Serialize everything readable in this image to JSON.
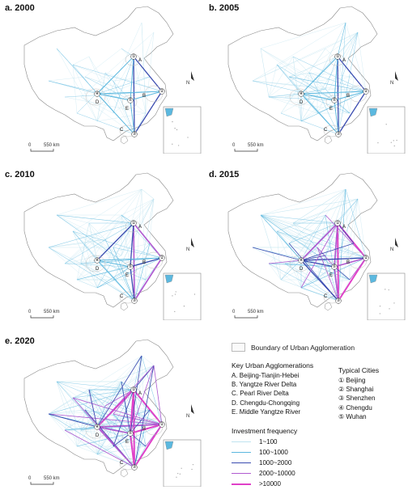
{
  "panels": [
    {
      "id": "2000",
      "label": "a. 2000",
      "level": 0
    },
    {
      "id": "2005",
      "label": "b. 2005",
      "level": 1
    },
    {
      "id": "2010",
      "label": "c. 2010",
      "level": 2
    },
    {
      "id": "2015",
      "label": "d. 2015",
      "level": 3
    },
    {
      "id": "2020",
      "label": "e. 2020",
      "level": 4
    }
  ],
  "scale_bar": {
    "zero": "0",
    "distance": "550 km"
  },
  "north_arrow": "N",
  "boundary_legend": "Boundary of Urban Agglomeration",
  "agglomerations": {
    "title": "Key Urban Agglomerations",
    "items": [
      "A. Beijing-Tianjin-Hebei",
      "B. Yangtze River Delta",
      "C. Pearl River Delta",
      "D. Chengdu-Chongqing",
      "E. Middle Yangtze River"
    ],
    "letters": [
      "A",
      "B",
      "C",
      "D",
      "E"
    ]
  },
  "cities": {
    "title": "Typical Cities",
    "items": [
      {
        "num": "①",
        "name": "Beijing"
      },
      {
        "num": "②",
        "name": "Shanghai"
      },
      {
        "num": "③",
        "name": "Shenzhen"
      },
      {
        "num": "④",
        "name": "Chengdu"
      },
      {
        "num": "⑤",
        "name": "Wuhan"
      }
    ]
  },
  "investment": {
    "title": "Investment frequency",
    "classes": [
      {
        "label": "1~100",
        "color": "#bfe3ef"
      },
      {
        "label": "100~1000",
        "color": "#5bb8df"
      },
      {
        "label": "1000~2000",
        "color": "#3a4bb0"
      },
      {
        "label": "2000~10000",
        "color": "#b05ad0"
      },
      {
        "label": ">10000",
        "color": "#e040c8"
      }
    ]
  },
  "colors": {
    "boundary_fill": "#fafafa",
    "boundary_stroke": "#bdbdbd",
    "land": "#ffffff"
  }
}
